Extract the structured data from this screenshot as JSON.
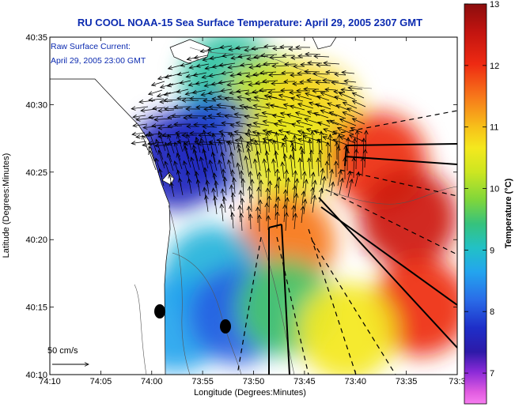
{
  "chart_data": {
    "type": "heatmap",
    "title": "RU COOL  NOAA-15  Sea Surface Temperature:  April 29, 2005 2307 GMT",
    "xlabel": "Longitude (Degrees:Minutes)",
    "ylabel": "Latitude (Degrees:Minutes)",
    "x_ticks": [
      "74:10",
      "74:05",
      "74:00",
      "73:55",
      "73:50",
      "73:45",
      "73:40",
      "73:35",
      "73:3"
    ],
    "x_tick_values": [
      -74.1667,
      -74.0833,
      -74.0,
      -73.9167,
      -73.8333,
      -73.75,
      -73.6667,
      -73.5833,
      -73.5
    ],
    "y_ticks": [
      "40:35",
      "40:30",
      "40:25",
      "40:20",
      "40:15",
      "40:10"
    ],
    "y_tick_values": [
      40.5833,
      40.5,
      40.4167,
      40.3333,
      40.25,
      40.1667
    ],
    "xlim": [
      -74.1667,
      -73.5
    ],
    "ylim": [
      40.1667,
      40.5833
    ],
    "grid": false,
    "colorbar": {
      "label": "Temperature (°C)",
      "range": [
        6.5,
        13
      ],
      "ticks": [
        "13",
        "12",
        "11",
        "10",
        "9",
        "8",
        "7"
      ],
      "tick_values": [
        13,
        12,
        11,
        10,
        9,
        8,
        7
      ]
    },
    "annotations": {
      "current_label_line1": "Raw Surface Current:",
      "current_label_line2": "April 29, 2005 23:00 GMT",
      "scale_label": "50 cm/s"
    },
    "sst_regions": [
      {
        "lon": -73.87,
        "lat": 40.53,
        "temp": 9.6
      },
      {
        "lon": -73.8,
        "lat": 40.5,
        "temp": 10.6
      },
      {
        "lon": -73.74,
        "lat": 40.49,
        "temp": 11.1
      },
      {
        "lon": -73.9,
        "lat": 40.45,
        "temp": 8.2
      },
      {
        "lon": -73.96,
        "lat": 40.43,
        "temp": 7.8
      },
      {
        "lon": -73.78,
        "lat": 40.44,
        "temp": 10.8
      },
      {
        "lon": -73.63,
        "lat": 40.43,
        "temp": 12.3
      },
      {
        "lon": -73.58,
        "lat": 40.36,
        "temp": 12.6
      },
      {
        "lon": -73.56,
        "lat": 40.25,
        "temp": 12.3
      },
      {
        "lon": -73.78,
        "lat": 40.33,
        "temp": 11.8
      },
      {
        "lon": -73.9,
        "lat": 40.29,
        "temp": 9.2
      },
      {
        "lon": -73.96,
        "lat": 40.23,
        "temp": 9.0
      },
      {
        "lon": -73.86,
        "lat": 40.24,
        "temp": 8.4
      },
      {
        "lon": -73.78,
        "lat": 40.25,
        "temp": 9.9
      },
      {
        "lon": -73.68,
        "lat": 40.22,
        "temp": 10.9
      }
    ]
  },
  "colors": {
    "title": "#0b2ab0",
    "land": "#ffffff"
  }
}
